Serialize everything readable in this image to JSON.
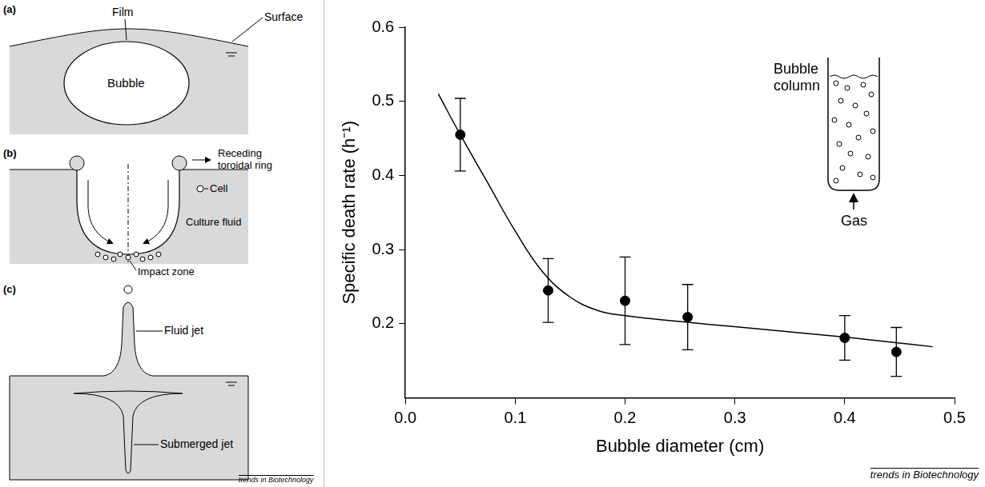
{
  "chart_data": {
    "type": "scatter",
    "x_label": "Bubble diameter (cm)",
    "y_label": "Specific death rate (h⁻¹)",
    "annotations": [
      "Bubble column",
      "Gas"
    ],
    "source": "trends in Biotechnology",
    "xlim": [
      0,
      0.5
    ],
    "xticks": [
      {
        "value": 0,
        "label": "0.0"
      },
      0.1,
      0.2,
      0.3,
      0.4,
      0.5
    ],
    "ylim": [
      0.1,
      0.6
    ],
    "yticks": [
      0.2,
      0.3,
      0.4,
      0.5,
      0.6
    ],
    "grid": false,
    "series": [
      {
        "type": "scatter",
        "color": "#000000",
        "marker": "circle",
        "x": [
          0.05,
          0.13,
          0.2,
          0.257,
          0.4,
          0.447
        ],
        "values": [
          0.455,
          0.245,
          0.231,
          0.209,
          0.181,
          0.162
        ],
        "errors": [
          0.049,
          0.043,
          0.059,
          0.044,
          0.03,
          0.033
        ]
      },
      {
        "type": "line",
        "color": "#000000",
        "line_style": "solid",
        "x": [
          0.03,
          0.05,
          0.075,
          0.1,
          0.125,
          0.15,
          0.175,
          0.2,
          0.25,
          0.3,
          0.35,
          0.4,
          0.45,
          0.48
        ],
        "values": [
          0.51,
          0.455,
          0.39,
          0.325,
          0.27,
          0.236,
          0.218,
          0.211,
          0.203,
          0.196,
          0.189,
          0.182,
          0.174,
          0.169
        ]
      }
    ]
  },
  "diagram": {
    "panels": [
      {
        "letter": "(a)",
        "labels": {
          "film": "Film",
          "surface": "Surface",
          "bubble": "Bubble"
        }
      },
      {
        "letter": "(b)",
        "labels": {
          "ring": "Receding toroidal ring",
          "cell": "Cell",
          "fluid": "Culture fluid",
          "impact": "Impact zone"
        }
      },
      {
        "letter": "(c)",
        "labels": {
          "jet": "Fluid jet",
          "submerged": "Submerged jet"
        }
      }
    ],
    "source": "trends in Biotechnology"
  }
}
